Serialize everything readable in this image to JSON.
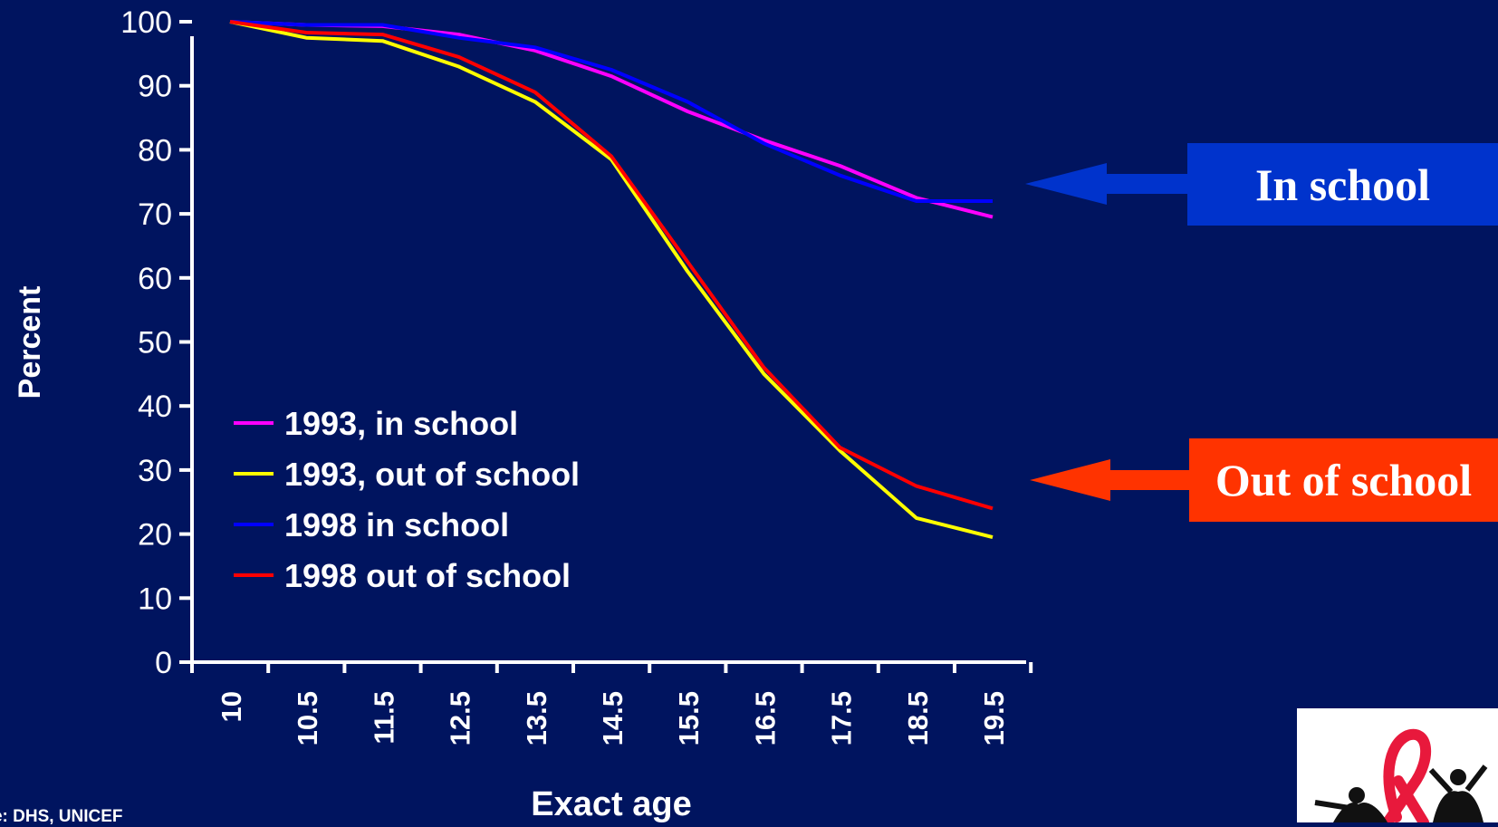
{
  "chart_data": {
    "type": "line",
    "x": [
      10,
      10.5,
      11.5,
      12.5,
      13.5,
      14.5,
      15.5,
      16.5,
      17.5,
      18.5,
      19.5
    ],
    "x_tick_labels": [
      "10",
      "10.5",
      "11.5",
      "12.5",
      "13.5",
      "14.5",
      "15.5",
      "16.5",
      "17.5",
      "18.5",
      "19.5"
    ],
    "series": [
      {
        "name": "1993, in school",
        "color": "#ff00ff",
        "values": [
          100,
          99.5,
          99.3,
          98,
          95.5,
          91.5,
          86,
          81.5,
          77.5,
          72.5,
          69.5
        ]
      },
      {
        "name": "1993, out of school",
        "color": "#ffff00",
        "values": [
          100,
          97.5,
          97,
          93,
          87.5,
          78.5,
          61,
          45,
          33,
          22.5,
          19.5
        ]
      },
      {
        "name": "1998 in school",
        "color": "#0000ff",
        "values": [
          100,
          99.5,
          99.5,
          97.5,
          96,
          92.5,
          87.5,
          81,
          76,
          72,
          72
        ]
      },
      {
        "name": "1998 out of school",
        "color": "#ff0000",
        "values": [
          100,
          98.3,
          98,
          94.5,
          89,
          79,
          62.5,
          46,
          33.5,
          27.5,
          24
        ]
      }
    ],
    "ylim": [
      0,
      100
    ],
    "y_ticks": [
      "0",
      "10",
      "20",
      "30",
      "40",
      "50",
      "60",
      "70",
      "80",
      "90",
      "100"
    ],
    "xlabel": "Exact age",
    "ylabel": "Percent",
    "grid": false,
    "legend": "lower-left"
  },
  "callouts": {
    "in_school": {
      "label": "In school",
      "color": "#0033cc"
    },
    "out_of_school": {
      "label": "Out of school",
      "color": "#ff3300"
    }
  },
  "source": "rce: DHS, UNICEF",
  "logo": {
    "icon": "aids-ribbon-people-icon"
  }
}
